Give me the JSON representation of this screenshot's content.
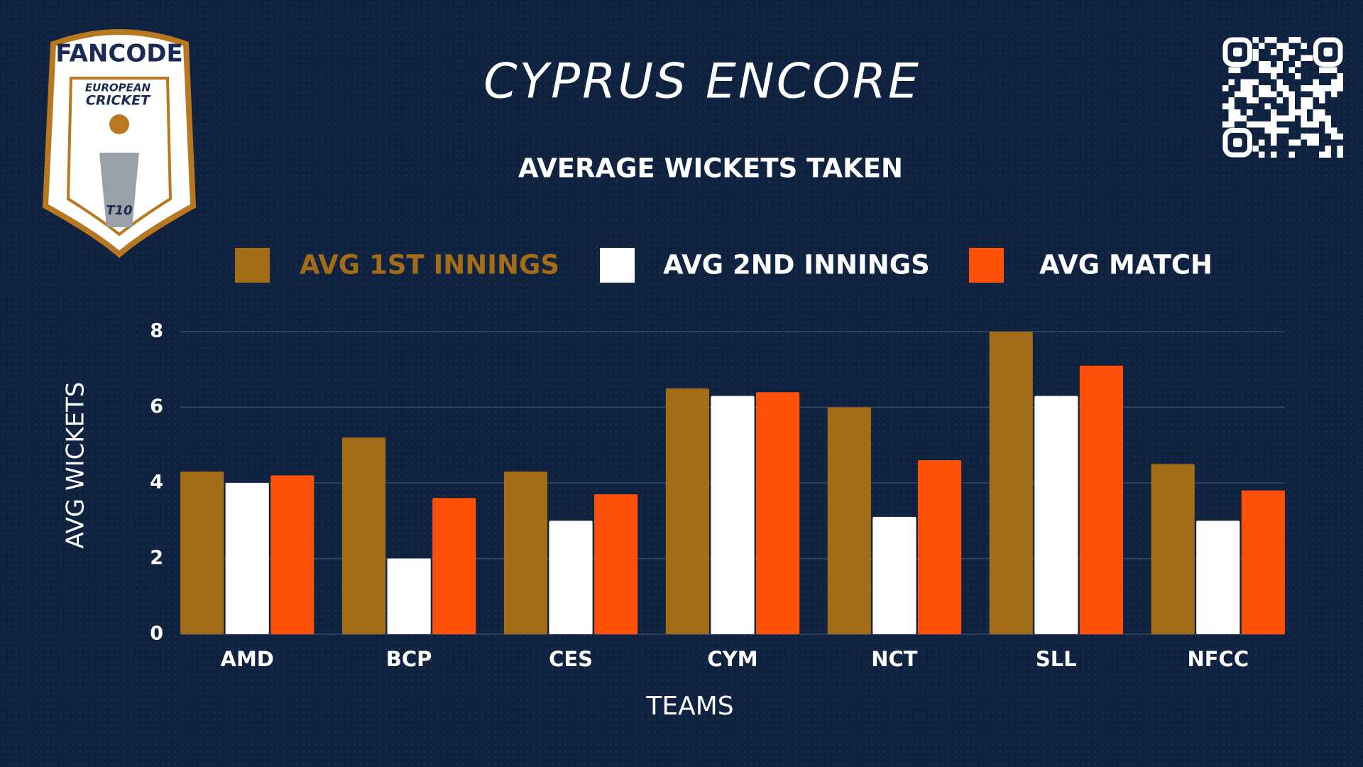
{
  "logo": {
    "brand": "FANCODE",
    "line1": "EUROPEAN",
    "line2": "CRICKET",
    "badge": "T10"
  },
  "chart_data": {
    "type": "bar",
    "title": "CYPRUS ENCORE",
    "subtitle": "AVERAGE WICKETS TAKEN",
    "x_label": "TEAMS",
    "y_label": "AVG WICKETS",
    "categories": [
      "AMD",
      "BCP",
      "CES",
      "CYM",
      "NCT",
      "SLL",
      "NFCC"
    ],
    "series": [
      {
        "name": "AVG 1ST INNINGS",
        "color": "#a36c17",
        "values": [
          4.3,
          5.2,
          4.3,
          6.5,
          6.0,
          8.0,
          4.5
        ]
      },
      {
        "name": "AVG 2ND INNINGS",
        "color": "#ffffff",
        "values": [
          4.0,
          2.0,
          3.0,
          6.3,
          3.1,
          6.3,
          3.0
        ]
      },
      {
        "name": "AVG MATCH",
        "color": "#ff5007",
        "values": [
          4.2,
          3.6,
          3.7,
          6.4,
          4.6,
          7.1,
          3.8
        ]
      }
    ],
    "ylim": [
      0,
      8
    ],
    "yticks": [
      0,
      2,
      4,
      6,
      8
    ],
    "grid": true,
    "legend": "top"
  }
}
